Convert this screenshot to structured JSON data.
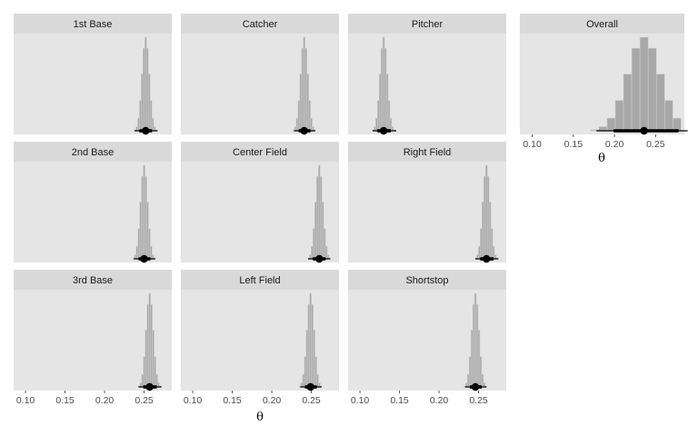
{
  "chart_data": {
    "type": "histogram",
    "xlabel": "θ",
    "ylabel": "",
    "xlim": [
      0.085,
      0.285
    ],
    "x_ticks": [
      0.1,
      0.15,
      0.2,
      0.25
    ],
    "x_tick_labels": [
      "0.10",
      "0.15",
      "0.20",
      "0.25"
    ],
    "grid": false,
    "interval": {
      "point": "mean",
      "thick": "inner interval",
      "thin": "outer interval"
    },
    "colors": {
      "panel": "#e5e5e5",
      "strip": "#d9d9d9",
      "bars": "#a8a8a8",
      "bar_edge": "#cfcfcf",
      "interval": "#000000"
    },
    "panels": [
      {
        "label": "1st Base",
        "center": 0.252,
        "sd": 0.0045,
        "interval": [
          0.244,
          0.26
        ],
        "outer": [
          0.238,
          0.267
        ]
      },
      {
        "label": "Catcher",
        "center": 0.241,
        "sd": 0.0045,
        "interval": [
          0.234,
          0.249
        ],
        "outer": [
          0.228,
          0.255
        ]
      },
      {
        "label": "Pitcher",
        "center": 0.13,
        "sd": 0.0045,
        "interval": [
          0.122,
          0.139
        ],
        "outer": [
          0.116,
          0.146
        ]
      },
      {
        "label": "Overall",
        "center": 0.236,
        "sd": 0.02,
        "interval": [
          0.199,
          0.278
        ],
        "outer": [
          0.178,
          0.29
        ]
      },
      {
        "label": "2nd Base",
        "center": 0.25,
        "sd": 0.0045,
        "interval": [
          0.243,
          0.258
        ],
        "outer": [
          0.237,
          0.264
        ]
      },
      {
        "label": "Center Field",
        "center": 0.26,
        "sd": 0.0045,
        "interval": [
          0.252,
          0.268
        ],
        "outer": [
          0.246,
          0.274
        ]
      },
      {
        "label": "Right Field",
        "center": 0.26,
        "sd": 0.0045,
        "interval": [
          0.252,
          0.269
        ],
        "outer": [
          0.246,
          0.275
        ]
      },
      {
        "label": "3rd Base",
        "center": 0.257,
        "sd": 0.0045,
        "interval": [
          0.249,
          0.266
        ],
        "outer": [
          0.243,
          0.272
        ]
      },
      {
        "label": "Left Field",
        "center": 0.249,
        "sd": 0.0045,
        "interval": [
          0.242,
          0.257
        ],
        "outer": [
          0.236,
          0.263
        ]
      },
      {
        "label": "Shortstop",
        "center": 0.246,
        "sd": 0.0045,
        "interval": [
          0.239,
          0.254
        ],
        "outer": [
          0.233,
          0.26
        ]
      }
    ]
  }
}
